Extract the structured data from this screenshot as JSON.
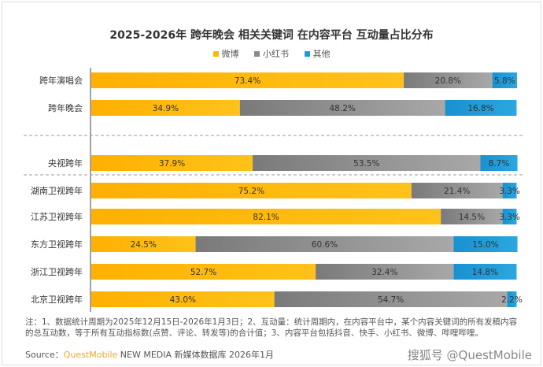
{
  "chart_data": {
    "type": "bar",
    "stacked": true,
    "orientation": "horizontal",
    "title": "2025-2026年 跨年晚会 相关关键词 在内容平台 互动量占比分布",
    "categories": [
      "跨年演唱会",
      "跨年晚会",
      "央视跨年",
      "湖南卫视跨年",
      "江苏卫视跨年",
      "东方卫视跨年",
      "浙江卫视跨年",
      "北京卫视跨年"
    ],
    "series": [
      {
        "name": "微博",
        "color": "#FFB800",
        "values": [
          73.4,
          34.9,
          37.9,
          75.2,
          82.1,
          24.5,
          52.7,
          43.0
        ]
      },
      {
        "name": "小红书",
        "color": "#8A8A8A",
        "values": [
          20.8,
          48.2,
          53.5,
          21.4,
          14.5,
          60.6,
          32.4,
          54.7
        ]
      },
      {
        "name": "其他",
        "color": "#1E9BD7",
        "values": [
          5.8,
          16.8,
          8.7,
          3.3,
          3.3,
          15.0,
          14.8,
          2.2
        ]
      }
    ],
    "unit": "%",
    "xlim": [
      0,
      100
    ],
    "legend": "top-center"
  },
  "footnote": "注：1、数据统计周期为2025年12月15日-2026年1月3日；2、互动量：统计周期内，在内容平台中，某个内容关键词的所有发稿内容的总互动数，等于所有互动指标数(点赞、评论、转发等)的合计值；3、内容平台包括抖音、快手、小红书、微博、哔哩哔哩。",
  "source": {
    "label": "Source：",
    "brand": "QuestMobile",
    "rest": " NEW MEDIA 新媒体数据库 2026年1月"
  },
  "watermark": "搜狐号 @QuestMobile"
}
